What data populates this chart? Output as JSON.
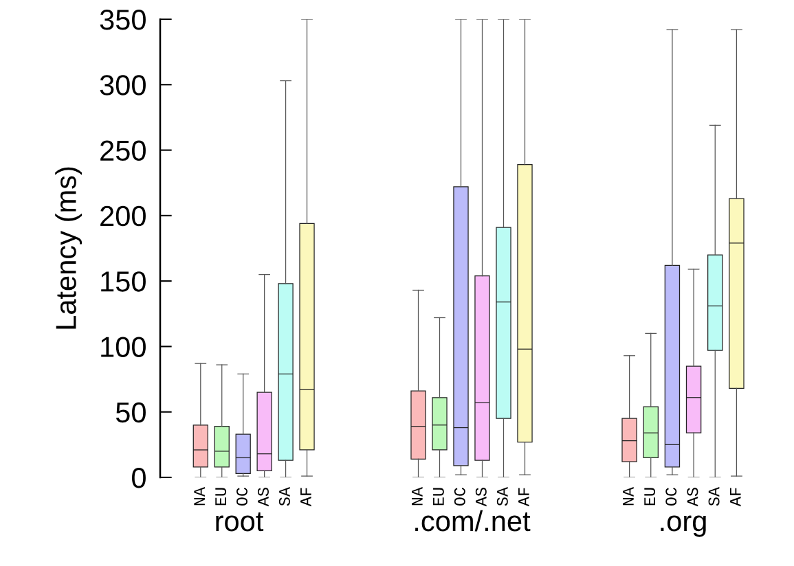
{
  "chart_data": [
    {
      "type": "box",
      "xlabel": "root",
      "ylabel": "Latency (ms)",
      "categories": [
        "NA",
        "EU",
        "OC",
        "AS",
        "SA",
        "AF"
      ],
      "colors": [
        "#fbb9b9",
        "#bbf8b8",
        "#bbbbfa",
        "#f8bbf8",
        "#bbfcf4",
        "#fcf8bc"
      ],
      "ylim": [
        0,
        350
      ],
      "yticks": [
        0,
        50,
        100,
        150,
        200,
        250,
        300,
        350
      ],
      "boxes": [
        {
          "low": 0,
          "q1": 8,
          "median": 21,
          "q3": 40,
          "high": 87
        },
        {
          "low": 0,
          "q1": 8,
          "median": 20,
          "q3": 39,
          "high": 86
        },
        {
          "low": 1,
          "q1": 3,
          "median": 15,
          "q3": 33,
          "high": 79
        },
        {
          "low": 0,
          "q1": 5,
          "median": 18,
          "q3": 65,
          "high": 155
        },
        {
          "low": 0,
          "q1": 13,
          "median": 79,
          "q3": 148,
          "high": 303
        },
        {
          "low": 1,
          "q1": 21,
          "median": 67,
          "q3": 194,
          "high": 350
        }
      ]
    },
    {
      "type": "box",
      "xlabel": ".com/.net",
      "categories": [
        "NA",
        "EU",
        "OC",
        "AS",
        "SA",
        "AF"
      ],
      "colors": [
        "#fbb9b9",
        "#bbf8b8",
        "#bbbbfa",
        "#f8bbf8",
        "#bbfcf4",
        "#fcf8bc"
      ],
      "ylim": [
        0,
        350
      ],
      "tick_labels": "x",
      "boxes": [
        {
          "low": 0,
          "q1": 14,
          "median": 39,
          "q3": 66,
          "high": 143
        },
        {
          "low": 0,
          "q1": 21,
          "median": 40,
          "q3": 61,
          "high": 122
        },
        {
          "low": 2,
          "q1": 9,
          "median": 38,
          "q3": 222,
          "high": 350
        },
        {
          "low": 0,
          "q1": 13,
          "median": 57,
          "q3": 154,
          "high": 350
        },
        {
          "low": 0,
          "q1": 45,
          "median": 134,
          "q3": 191,
          "high": 350
        },
        {
          "low": 2,
          "q1": 27,
          "median": 98,
          "q3": 239,
          "high": 350
        }
      ]
    },
    {
      "type": "box",
      "xlabel": ".org",
      "categories": [
        "NA",
        "EU",
        "OC",
        "AS",
        "SA",
        "AF"
      ],
      "colors": [
        "#fbb9b9",
        "#bbf8b8",
        "#bbbbfa",
        "#f8bbf8",
        "#bbfcf4",
        "#fcf8bc"
      ],
      "ylim": [
        0,
        350
      ],
      "tick_labels": "x",
      "boxes": [
        {
          "low": 0,
          "q1": 12,
          "median": 28,
          "q3": 45,
          "high": 93
        },
        {
          "low": 0,
          "q1": 15,
          "median": 34,
          "q3": 54,
          "high": 110
        },
        {
          "low": 2,
          "q1": 8,
          "median": 25,
          "q3": 162,
          "high": 342
        },
        {
          "low": 0,
          "q1": 34,
          "median": 61,
          "q3": 85,
          "high": 159
        },
        {
          "low": 0,
          "q1": 97,
          "median": 131,
          "q3": 170,
          "high": 269
        },
        {
          "low": 1,
          "q1": 68,
          "median": 179,
          "q3": 213,
          "high": 342
        }
      ]
    }
  ]
}
